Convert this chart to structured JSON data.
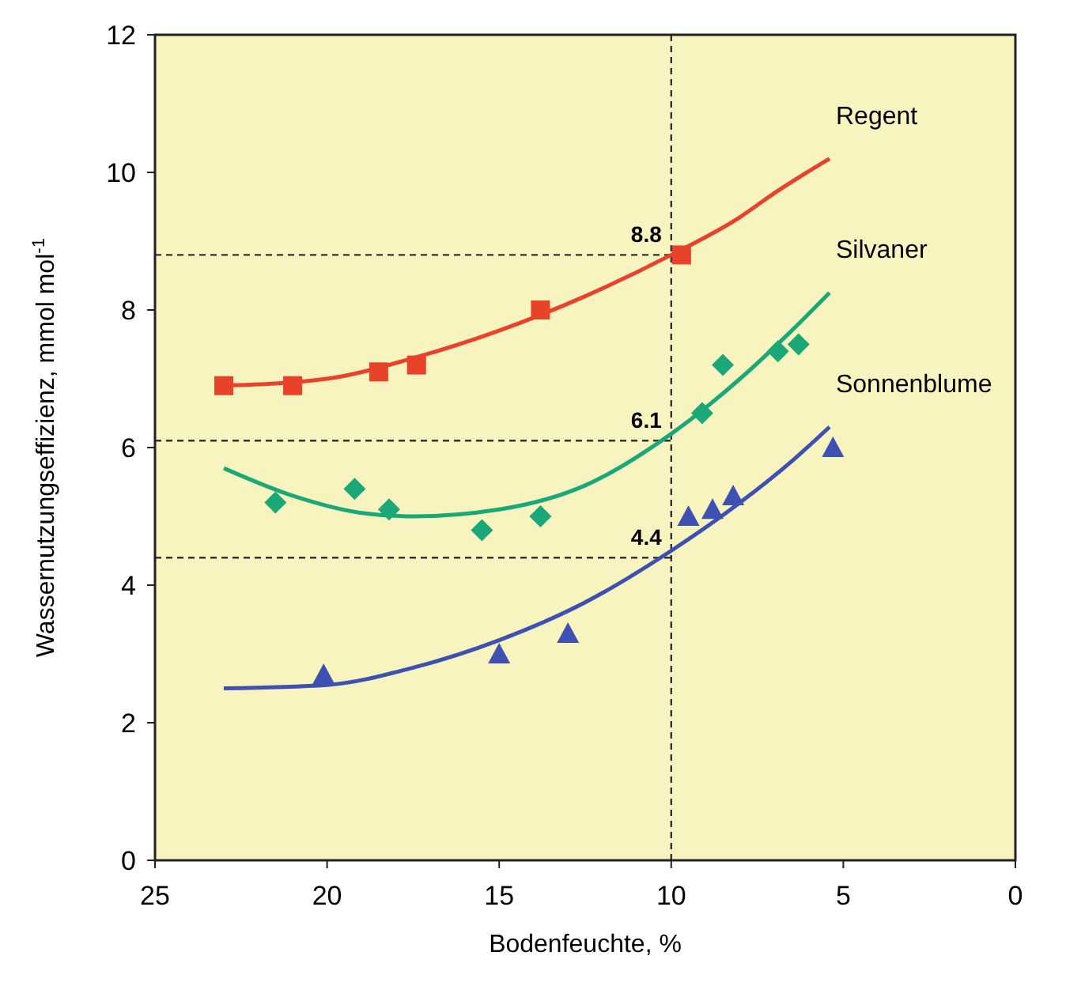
{
  "chart_data": {
    "type": "scatter",
    "xlabel": "Bodenfeuchte, %",
    "ylabel": "Wassernutzungseffizienz, mmol mol$^{-1}$",
    "xlim": [
      25,
      0
    ],
    "ylim": [
      0,
      12
    ],
    "xticks": [
      25,
      20,
      15,
      10,
      5,
      0
    ],
    "yticks": [
      0,
      2,
      4,
      6,
      8,
      10,
      12
    ],
    "grid": false,
    "series": [
      {
        "type": "line",
        "name": "Regent",
        "color": "#e8432a",
        "marker": "none",
        "x": [
          23,
          20,
          17.5,
          15,
          12.5,
          10,
          8,
          7,
          5.4
        ],
        "values": [
          6.9,
          7.0,
          7.3,
          7.7,
          8.2,
          8.8,
          9.35,
          9.7,
          10.2
        ]
      },
      {
        "type": "line",
        "name": "Silvaner",
        "color": "#1aa878",
        "marker": "none",
        "x": [
          23,
          21,
          19,
          17.5,
          15,
          12.5,
          10,
          8,
          6.5,
          5.4
        ],
        "values": [
          5.7,
          5.3,
          5.05,
          5.0,
          5.1,
          5.45,
          6.2,
          7.0,
          7.7,
          8.25
        ]
      },
      {
        "type": "line",
        "name": "Sonnenblume",
        "color": "#3f51b0",
        "marker": "none",
        "x": [
          23,
          20,
          17.5,
          15,
          12.5,
          10,
          8,
          6.5,
          5.4
        ],
        "values": [
          2.5,
          2.55,
          2.8,
          3.2,
          3.75,
          4.5,
          5.2,
          5.8,
          6.3
        ]
      },
      {
        "color": "#e8432a",
        "marker": "square",
        "x": [
          23,
          21,
          18.5,
          17.4,
          13.8,
          9.7
        ],
        "values": [
          6.9,
          6.9,
          7.1,
          7.2,
          8.0,
          8.8
        ]
      },
      {
        "color": "#1aa878",
        "marker": "diamond",
        "x": [
          21.5,
          19.2,
          18.2,
          15.5,
          13.8,
          9.1,
          8.5,
          6.9,
          6.3
        ],
        "values": [
          5.2,
          5.4,
          5.1,
          4.8,
          5.0,
          6.5,
          7.2,
          7.4,
          7.5
        ]
      },
      {
        "color": "#3f51b0",
        "marker": "triangle",
        "x": [
          20.1,
          15,
          13,
          9.5,
          8.8,
          8.2,
          5.3
        ],
        "values": [
          2.7,
          3.0,
          3.3,
          5.0,
          5.1,
          5.3,
          6.0
        ]
      }
    ],
    "ref_lines": [
      {
        "axis": "x",
        "value": 10,
        "line_style": "dashed",
        "color": "#333333"
      },
      {
        "axis": "y",
        "value": 8.8,
        "label": "8.8",
        "line_style": "dashed",
        "color": "#333333"
      },
      {
        "axis": "y",
        "value": 6.1,
        "label": "6.1",
        "line_style": "dashed",
        "color": "#333333"
      },
      {
        "axis": "y",
        "value": 4.4,
        "label": "4.4",
        "line_style": "dashed",
        "color": "#333333"
      }
    ]
  }
}
